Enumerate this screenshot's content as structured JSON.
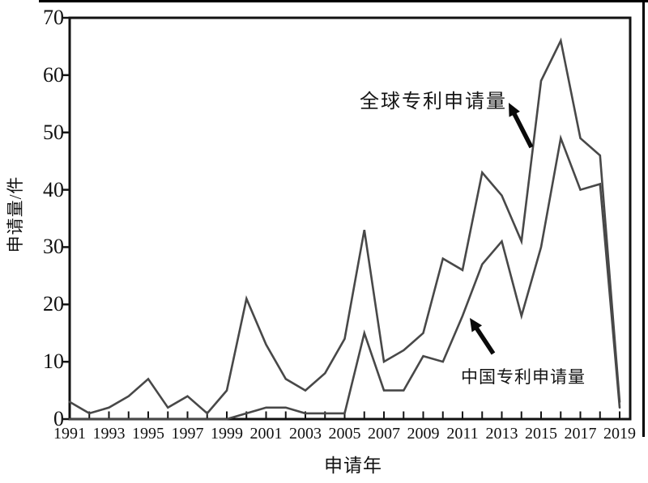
{
  "figure_name": "patent-applications-line-chart",
  "y_axis": {
    "title": "申请量/件",
    "tick_labels": [
      "0",
      "10",
      "20",
      "30",
      "40",
      "50",
      "60",
      "70"
    ]
  },
  "x_axis": {
    "title": "申请年",
    "tick_labels": [
      "1991",
      "1993",
      "1995",
      "1997",
      "1999",
      "2001",
      "2003",
      "2005",
      "2007",
      "2009",
      "2011",
      "2013",
      "2015",
      "2017",
      "2019"
    ]
  },
  "annotations": {
    "global": {
      "label": "全球专利申请量"
    },
    "china": {
      "label": "中国专利申请量"
    }
  },
  "chart_data": {
    "type": "line",
    "x": [
      1991,
      1992,
      1993,
      1994,
      1995,
      1996,
      1997,
      1998,
      1999,
      2000,
      2001,
      2002,
      2003,
      2004,
      2005,
      2006,
      2007,
      2008,
      2009,
      2010,
      2011,
      2012,
      2013,
      2014,
      2015,
      2016,
      2017,
      2018,
      2019
    ],
    "series": [
      {
        "name": "全球专利申请量",
        "values": [
          3,
          1,
          2,
          4,
          7,
          2,
          4,
          1,
          5,
          21,
          13,
          7,
          5,
          8,
          14,
          33,
          10,
          12,
          15,
          28,
          26,
          43,
          39,
          31,
          59,
          66,
          49,
          46,
          3
        ]
      },
      {
        "name": "中国专利申请量",
        "values": [
          0,
          0,
          0,
          0,
          0,
          0,
          0,
          0,
          0,
          1,
          2,
          2,
          1,
          1,
          1,
          15,
          5,
          5,
          11,
          10,
          18,
          27,
          31,
          18,
          30,
          49,
          40,
          41,
          2
        ]
      }
    ],
    "xlabel": "申请年",
    "ylabel": "申请量/件",
    "xlim": [
      1991,
      2019
    ],
    "ylim": [
      0,
      70
    ],
    "y_tick_step": 10,
    "grid": false,
    "legend": "arrow-annotations-on-plot"
  },
  "colors": {
    "series_line": "#484848",
    "axis": "#121212",
    "arrow": "#0a0a0a",
    "text": "#111111",
    "background": "#ffffff",
    "page_border": "#000000"
  }
}
